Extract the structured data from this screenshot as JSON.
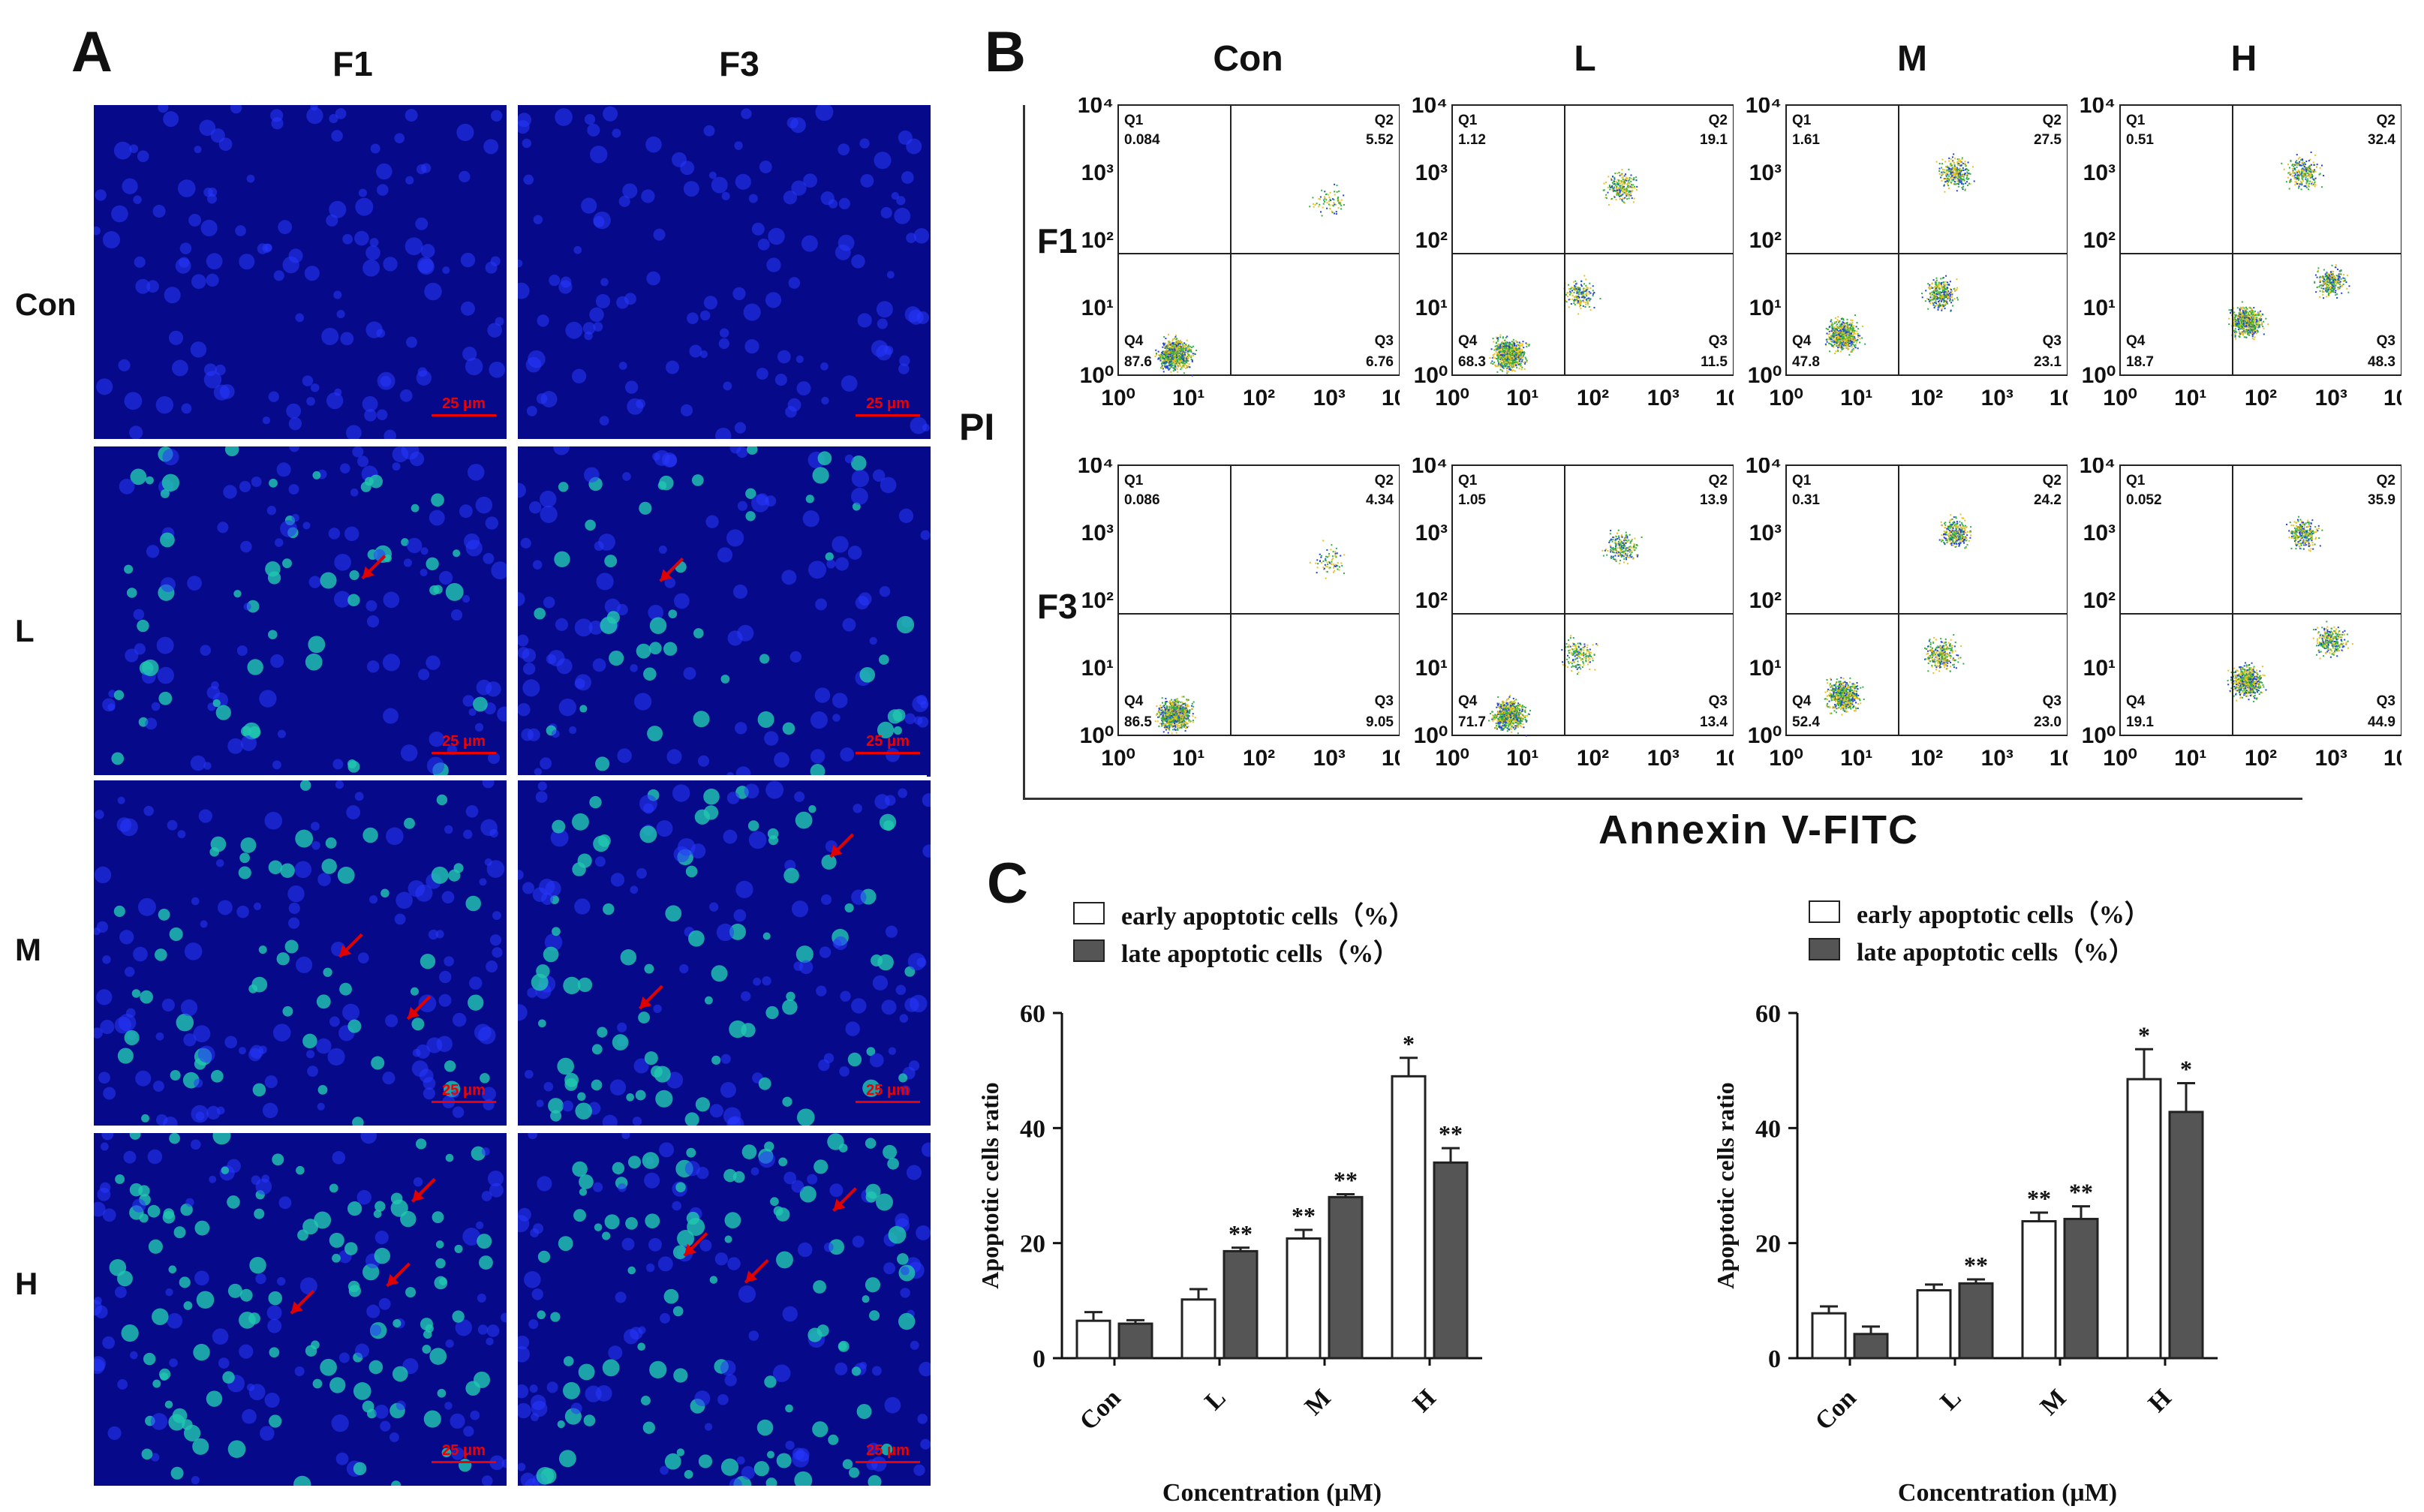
{
  "panel_a": {
    "letter": "A",
    "columns": [
      "F1",
      "F3"
    ],
    "rows": [
      "Con",
      "L",
      "M",
      "H"
    ],
    "scale_label": "25 μm",
    "colors": {
      "background": "#060a8a",
      "nucleus_blue": "#2838ff",
      "apoptotic_green": "#22c8b0",
      "arrow": "#e00000"
    }
  },
  "panel_b": {
    "letter": "B",
    "conditions": [
      "Con",
      "L",
      "M",
      "H"
    ],
    "rows": [
      "F1",
      "F3"
    ],
    "y_axis_title": "PI",
    "x_axis_title": "Annexin V-FITC",
    "tick_labels": [
      "10⁰",
      "10¹",
      "10²",
      "10³",
      "10⁴"
    ],
    "quadrant_names": [
      "Q1",
      "Q2",
      "Q3",
      "Q4"
    ],
    "plots": [
      [
        {
          "q1": "0.084",
          "q2": "5.52",
          "q3": "6.76",
          "q4": "87.6"
        },
        {
          "q1": "1.12",
          "q2": "19.1",
          "q3": "11.5",
          "q4": "68.3"
        },
        {
          "q1": "1.61",
          "q2": "27.5",
          "q3": "23.1",
          "q4": "47.8"
        },
        {
          "q1": "0.51",
          "q2": "32.4",
          "q3": "48.3",
          "q4": "18.7"
        }
      ],
      [
        {
          "q1": "0.086",
          "q2": "4.34",
          "q3": "9.05",
          "q4": "86.5"
        },
        {
          "q1": "1.05",
          "q2": "13.9",
          "q3": "13.4",
          "q4": "71.7"
        },
        {
          "q1": "0.31",
          "q2": "24.2",
          "q3": "23.0",
          "q4": "52.4"
        },
        {
          "q1": "0.052",
          "q2": "35.9",
          "q3": "44.9",
          "q4": "19.1"
        }
      ]
    ]
  },
  "panel_c": {
    "letter": "C",
    "legend": [
      "early apoptotic cells（%）",
      "late apoptotic cells（%）"
    ]
  },
  "chart_data": [
    {
      "type": "bar",
      "categories": [
        "Con",
        "L",
        "M",
        "H"
      ],
      "series": [
        {
          "name": "early apoptotic cells（%）",
          "values": [
            6.5,
            10.2,
            20.8,
            49.0
          ],
          "errors": [
            1.5,
            1.8,
            1.5,
            3.2
          ],
          "sig": [
            "",
            "",
            "**",
            "*"
          ],
          "color": "#ffffff"
        },
        {
          "name": "late apoptotic cells（%）",
          "values": [
            6.0,
            18.6,
            28.0,
            34.0
          ],
          "errors": [
            0.6,
            0.6,
            0.5,
            2.5
          ],
          "sig": [
            "",
            "**",
            "**",
            "**"
          ],
          "color": "#555555"
        }
      ],
      "xlabel": "Concentration (μM)",
      "ylabel": "Apoptotic cells ratio",
      "ylim": [
        0,
        60
      ],
      "yticks": [
        0,
        20,
        40,
        60
      ]
    },
    {
      "type": "bar",
      "categories": [
        "Con",
        "L",
        "M",
        "H"
      ],
      "series": [
        {
          "name": "early apoptotic cells（%）",
          "values": [
            7.8,
            11.8,
            23.8,
            48.5
          ],
          "errors": [
            1.2,
            1.0,
            1.5,
            5.2
          ],
          "sig": [
            "",
            "",
            "**",
            "*"
          ],
          "color": "#ffffff"
        },
        {
          "name": "late apoptotic cells（%）",
          "values": [
            4.2,
            13.0,
            24.2,
            42.8
          ],
          "errors": [
            1.3,
            0.7,
            2.2,
            5.0
          ],
          "sig": [
            "",
            "**",
            "**",
            "*"
          ],
          "color": "#555555"
        }
      ],
      "xlabel": "Concentration (μM)",
      "ylabel": "Apoptotic cells ratio",
      "ylim": [
        0,
        60
      ],
      "yticks": [
        0,
        20,
        40,
        60
      ]
    }
  ]
}
